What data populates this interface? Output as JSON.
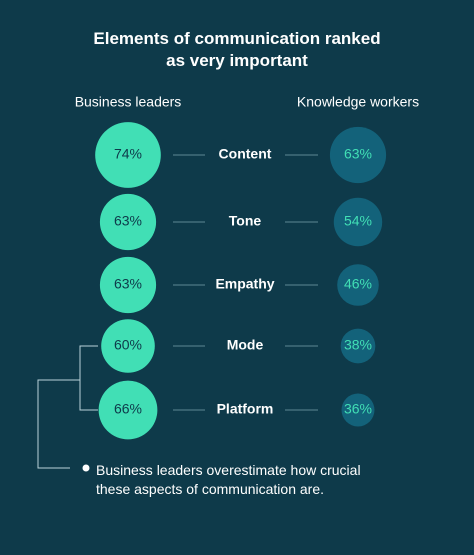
{
  "chart_data": {
    "type": "paired-bubble",
    "title": "Elements of communication ranked as very important",
    "categories": [
      "Content",
      "Tone",
      "Empathy",
      "Mode",
      "Platform"
    ],
    "series": [
      {
        "name": "Business leaders",
        "color": "#41dfb5",
        "label_color": "#0e3a4a",
        "values": [
          74,
          63,
          63,
          60,
          66
        ],
        "value_labels": [
          "74%",
          "63%",
          "63%",
          "60%",
          "66%"
        ]
      },
      {
        "name": "Knowledge workers",
        "color": "#13627a",
        "label_color": "#41dfb5",
        "values": [
          63,
          54,
          46,
          38,
          36
        ],
        "value_labels": [
          "63%",
          "54%",
          "46%",
          "38%",
          "36%"
        ]
      }
    ],
    "annotation": "Business leaders overestimate how crucial these aspects of communication are."
  }
}
